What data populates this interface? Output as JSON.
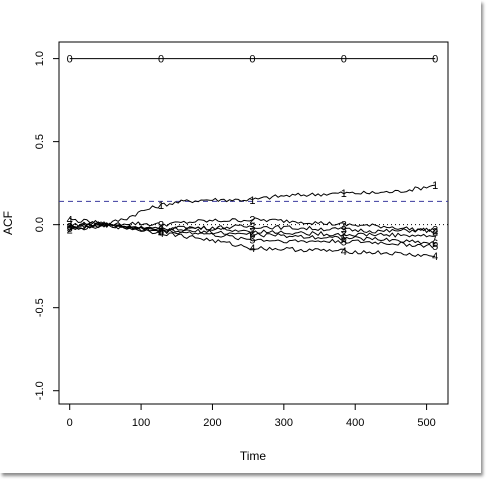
{
  "chart_data": {
    "type": "line",
    "title": "",
    "xlabel": "Time",
    "ylabel": "ACF",
    "xlim": [
      -15,
      530
    ],
    "ylim": [
      -1.08,
      1.1
    ],
    "x_ticks": [
      0,
      100,
      200,
      300,
      400,
      500
    ],
    "y_ticks": [
      -1.0,
      -0.5,
      0.0,
      0.5,
      1.0
    ],
    "y_tick_labels": [
      "-1.0",
      "-0.5",
      "0.0",
      "0.5",
      "1.0"
    ],
    "grid": false,
    "legend": "none",
    "reference_lines": [
      {
        "style": "dashed",
        "color": "#3b3b9e",
        "y": 0.14
      },
      {
        "style": "dotted",
        "color": "#000000",
        "y": 0.0
      }
    ],
    "series": [
      {
        "marker": "0",
        "x": [
          0,
          128,
          256,
          384,
          512
        ],
        "y": [
          1.0,
          1.0,
          1.0,
          1.0,
          1.0
        ],
        "markers_at": [
          0,
          128,
          256,
          384,
          512
        ],
        "color": "#000000"
      },
      {
        "marker": "1",
        "x": [
          0,
          40,
          80,
          100,
          130,
          160,
          190,
          220,
          256,
          290,
          330,
          384,
          420,
          460,
          490,
          512
        ],
        "y": [
          -0.02,
          -0.01,
          0.04,
          0.08,
          0.12,
          0.14,
          0.15,
          0.15,
          0.15,
          0.17,
          0.18,
          0.19,
          0.19,
          0.2,
          0.22,
          0.24
        ],
        "markers_at": [
          128,
          256,
          384,
          512
        ],
        "color": "#000000"
      },
      {
        "marker": "2",
        "x": [
          0,
          40,
          80,
          128,
          180,
          256,
          320,
          384,
          440,
          512
        ],
        "y": [
          -0.03,
          -0.01,
          0.01,
          0.0,
          0.02,
          0.03,
          0.02,
          0.0,
          -0.01,
          -0.04
        ],
        "markers_at": [
          0,
          128,
          256,
          384,
          512
        ],
        "color": "#000000"
      },
      {
        "marker": "3",
        "x": [
          0,
          40,
          80,
          128,
          180,
          256,
          320,
          384,
          440,
          512
        ],
        "y": [
          -0.01,
          0.0,
          -0.01,
          -0.03,
          -0.02,
          -0.01,
          -0.02,
          -0.03,
          -0.04,
          -0.03
        ],
        "markers_at": [
          0,
          128,
          256,
          384,
          512
        ],
        "color": "#000000"
      },
      {
        "marker": "4",
        "x": [
          0,
          40,
          80,
          128,
          180,
          256,
          320,
          384,
          440,
          512
        ],
        "y": [
          0.03,
          0.01,
          -0.02,
          -0.05,
          -0.08,
          -0.14,
          -0.15,
          -0.16,
          -0.17,
          -0.19
        ],
        "markers_at": [
          0,
          128,
          256,
          384,
          512
        ],
        "color": "#000000"
      },
      {
        "marker": "5",
        "x": [
          0,
          40,
          80,
          128,
          180,
          256,
          320,
          384,
          440,
          512
        ],
        "y": [
          -0.02,
          0.0,
          -0.01,
          -0.04,
          -0.05,
          -0.09,
          -0.1,
          -0.1,
          -0.11,
          -0.13
        ],
        "markers_at": [
          0,
          128,
          256,
          384,
          512
        ],
        "color": "#000000"
      },
      {
        "marker": "6",
        "x": [
          0,
          40,
          80,
          128,
          180,
          256,
          320,
          384,
          440,
          512
        ],
        "y": [
          -0.01,
          0.0,
          -0.02,
          -0.04,
          -0.04,
          -0.06,
          -0.07,
          -0.08,
          -0.09,
          -0.11
        ],
        "markers_at": [
          0,
          128,
          256,
          384,
          512
        ],
        "color": "#000000"
      },
      {
        "marker": "7",
        "x": [
          0,
          40,
          80,
          128,
          180,
          256,
          320,
          384,
          440,
          512
        ],
        "y": [
          0.0,
          0.01,
          -0.01,
          -0.02,
          -0.02,
          -0.04,
          -0.05,
          -0.06,
          -0.06,
          -0.07
        ],
        "markers_at": [
          0,
          128,
          256,
          384,
          512
        ],
        "color": "#000000"
      }
    ]
  }
}
